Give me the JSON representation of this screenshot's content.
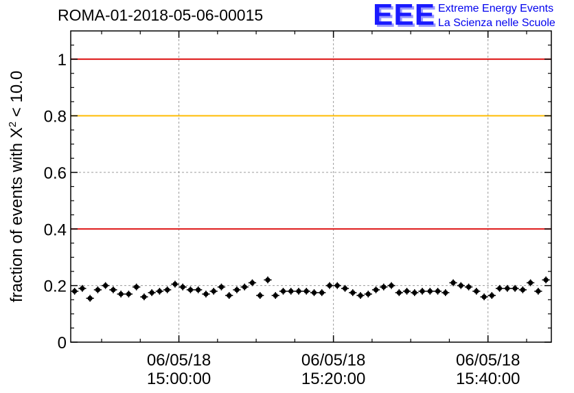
{
  "header": {
    "run_title": "ROMA-01-2018-05-06-00015",
    "logo_mark": "EEE",
    "logo_line1": "Extreme Energy Events",
    "logo_line2": "La Scienza nelle Scuole"
  },
  "chart_data": {
    "type": "scatter",
    "title": "ROMA-01-2018-05-06-00015",
    "ylabel": {
      "prefix": "fraction of events with X",
      "superscript": "2",
      "suffix": " < 10.0"
    },
    "xlabel": "",
    "ylim": [
      0,
      1.1
    ],
    "yticks": [
      0,
      0.2,
      0.4,
      0.6,
      0.8,
      1
    ],
    "ytick_labels": [
      "0",
      "0.2",
      "0.4",
      "0.6",
      "0.8",
      "1"
    ],
    "xlim_minutes_after_1440": [
      0,
      62.2
    ],
    "xticks": [
      {
        "minute": 14.0,
        "date": "06/05/18",
        "time": "15:00:00"
      },
      {
        "minute": 34.0,
        "date": "06/05/18",
        "time": "15:20:00"
      },
      {
        "minute": 54.0,
        "date": "06/05/18",
        "time": "15:40:00"
      }
    ],
    "grid": true,
    "reference_lines": [
      {
        "y": 1.0,
        "color": "#dd1111"
      },
      {
        "y": 0.8,
        "color": "#ffbb00"
      },
      {
        "y": 0.4,
        "color": "#dd1111"
      }
    ],
    "marker_color": "#000000",
    "x_error_minutes": 0.5,
    "y_error": 0.012,
    "series": [
      {
        "x": [
          0.5,
          1.5,
          2.5,
          3.5,
          4.5,
          5.5,
          6.5,
          7.5,
          8.5,
          9.5,
          10.5,
          11.5,
          12.5,
          13.5,
          14.5,
          15.5,
          16.5,
          17.5,
          18.5,
          19.5,
          20.5,
          21.5,
          22.5,
          23.5,
          24.5,
          25.5,
          26.5,
          27.5,
          28.5,
          29.5,
          30.5,
          31.5,
          32.5,
          33.5,
          34.5,
          35.5,
          36.5,
          37.5,
          38.5,
          39.5,
          40.5,
          41.5,
          42.5,
          43.5,
          44.5,
          45.5,
          46.5,
          47.5,
          48.5,
          49.5,
          50.5,
          51.5,
          52.5,
          53.5,
          54.5,
          55.5,
          56.5,
          57.5,
          58.5,
          59.5,
          60.5,
          61.5
        ],
        "y": [
          0.18,
          0.19,
          0.155,
          0.185,
          0.2,
          0.185,
          0.17,
          0.17,
          0.195,
          0.16,
          0.175,
          0.18,
          0.185,
          0.205,
          0.195,
          0.185,
          0.185,
          0.17,
          0.18,
          0.195,
          0.165,
          0.185,
          0.195,
          0.21,
          0.165,
          0.22,
          0.165,
          0.18,
          0.18,
          0.18,
          0.18,
          0.175,
          0.175,
          0.2,
          0.2,
          0.19,
          0.175,
          0.165,
          0.17,
          0.185,
          0.195,
          0.2,
          0.175,
          0.18,
          0.175,
          0.18,
          0.18,
          0.18,
          0.175,
          0.21,
          0.2,
          0.195,
          0.18,
          0.16,
          0.165,
          0.19,
          0.19,
          0.19,
          0.185,
          0.21,
          0.18,
          0.22
        ]
      }
    ]
  }
}
